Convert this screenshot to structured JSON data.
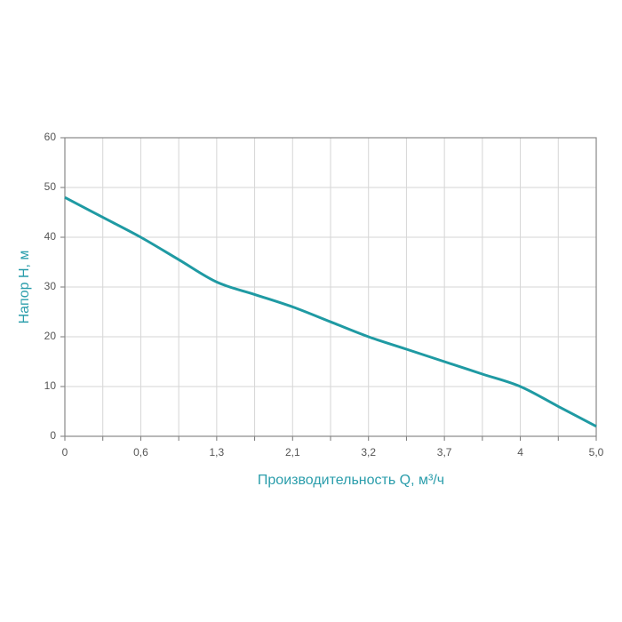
{
  "chart_data": {
    "type": "line",
    "x_label": "Производительность Q, м³/ч",
    "y_label": "Напор H, м",
    "categories": [
      "0",
      null,
      "0,6",
      null,
      "1,3",
      null,
      "2,1",
      null,
      "3,2",
      null,
      "3,7",
      null,
      "4",
      null,
      "5,0"
    ],
    "series": [
      {
        "name": "H",
        "color": "#1f9aa3",
        "values": [
          48,
          44,
          40,
          35.5,
          31,
          28.5,
          26,
          23,
          20,
          17.5,
          15,
          12.5,
          10,
          6,
          2
        ]
      }
    ],
    "ylim": [
      0,
      60
    ],
    "yticks": [
      0,
      10,
      20,
      30,
      40,
      50,
      60
    ],
    "grid": true
  }
}
